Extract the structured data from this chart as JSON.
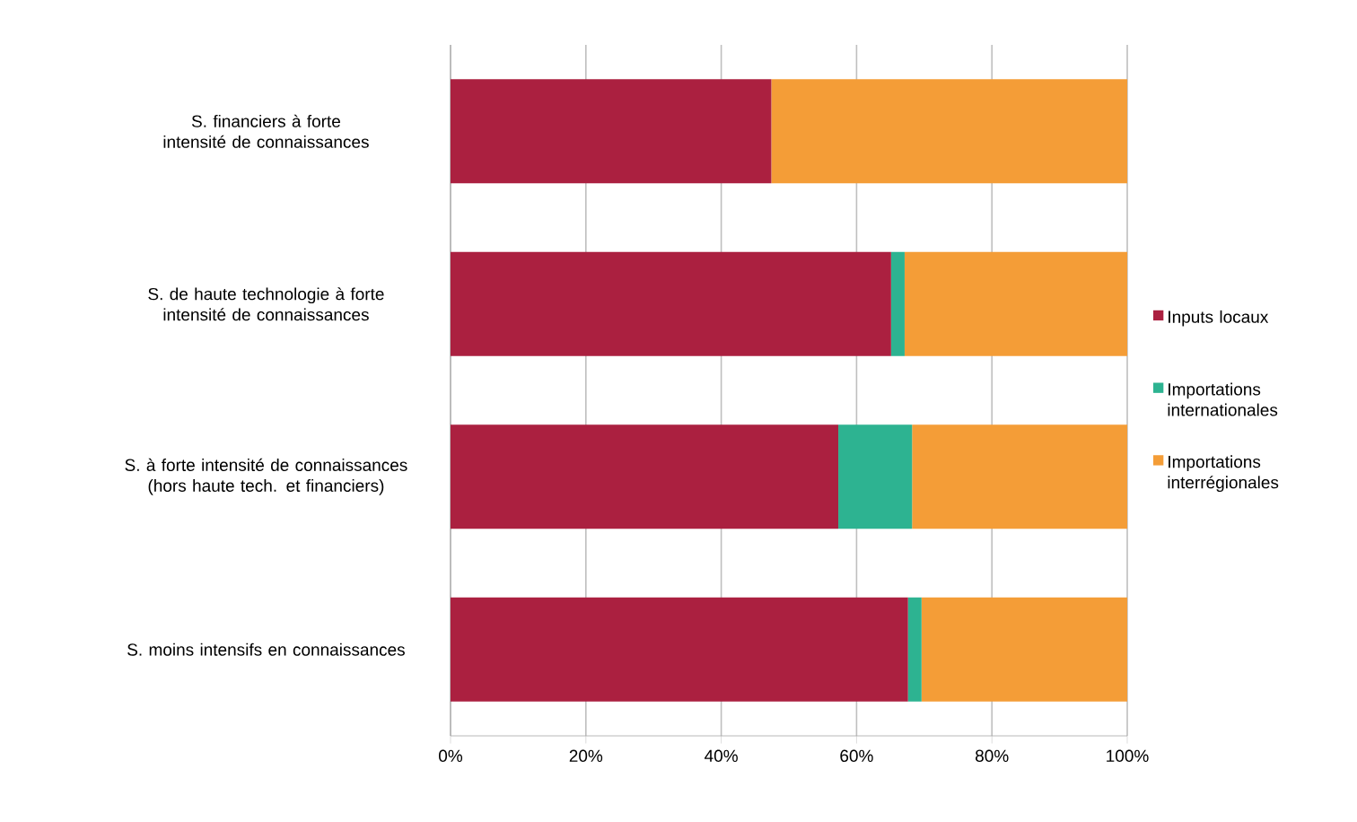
{
  "chart_data": {
    "type": "bar",
    "orientation": "horizontal",
    "stacked": true,
    "categories": [
      "S. financiers à forte intensité de connaissances",
      "S. de haute technologie à forte intensité de connaissances",
      "S. à forte intensité de connaissances (hors haute tech. et financiers)",
      "S. moins intensifs en connaissances"
    ],
    "series": [
      {
        "name": "Inputs locaux",
        "color": "#ab2040",
        "values": [
          47.4,
          65.1,
          57.3,
          67.6
        ]
      },
      {
        "name": "Importations internationales",
        "color": "#2db391",
        "values": [
          0,
          2.0,
          10.9,
          2.0
        ]
      },
      {
        "name": "Importations interrégionales",
        "color": "#f49d37",
        "values": [
          52.6,
          32.9,
          31.8,
          30.4
        ]
      }
    ],
    "xlim": [
      0,
      100
    ],
    "xticks": [
      {
        "value": 0,
        "label": "0%"
      },
      {
        "value": 20,
        "label": "20%"
      },
      {
        "value": 40,
        "label": "40%"
      },
      {
        "value": 60,
        "label": "60%"
      },
      {
        "value": 80,
        "label": "80%"
      },
      {
        "value": 100,
        "label": "100%"
      }
    ],
    "grid": "x",
    "legend": "right"
  }
}
